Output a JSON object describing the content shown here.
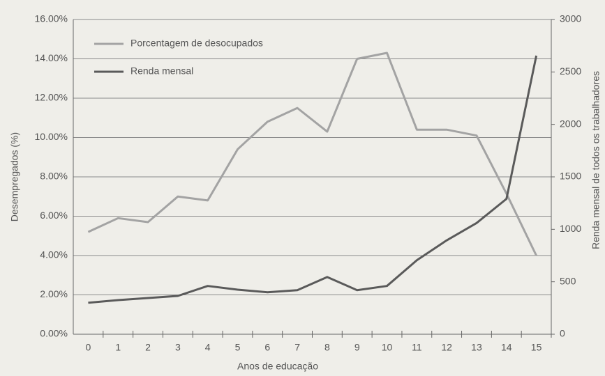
{
  "chart_data": {
    "type": "line",
    "x": [
      0,
      1,
      2,
      3,
      4,
      5,
      6,
      7,
      8,
      9,
      10,
      11,
      12,
      13,
      14,
      15
    ],
    "xlim": [
      -0.5,
      15.5
    ],
    "xticks": [
      0,
      1,
      2,
      3,
      4,
      5,
      6,
      7,
      8,
      9,
      10,
      11,
      12,
      13,
      14,
      15
    ],
    "xlabel": "Anos de educação",
    "ylabel": "Desempregados (%)",
    "y2label": "Renda mensal de todos os trabalhadores",
    "ylim": [
      0,
      16
    ],
    "yticks": [
      {
        "value": 0,
        "label": "0.00%"
      },
      {
        "value": 2,
        "label": "2.00%"
      },
      {
        "value": 4,
        "label": "4.00%"
      },
      {
        "value": 6,
        "label": "6.00%"
      },
      {
        "value": 8,
        "label": "8.00%"
      },
      {
        "value": 10,
        "label": "10.00%"
      },
      {
        "value": 12,
        "label": "12.00%"
      },
      {
        "value": 14,
        "label": "14.00%"
      },
      {
        "value": 16,
        "label": "16.00%"
      }
    ],
    "y2lim": [
      0,
      3000
    ],
    "y2ticks": [
      0,
      500,
      1000,
      1500,
      2000,
      2500,
      3000
    ],
    "grid": true,
    "legend": "upper left",
    "series": [
      {
        "name": "Porcentagem de desocupados",
        "color": "#a3a3a3",
        "values": [
          5.2,
          5.9,
          5.7,
          7.0,
          6.8,
          9.4,
          10.8,
          11.5,
          10.3,
          14.0,
          14.3,
          10.4,
          10.4,
          10.1,
          7.15,
          4.0
        ]
      },
      {
        "name": "Renda mensal",
        "color": "#5a5a5a",
        "axis": "y2",
        "values": [
          300,
          325,
          345,
          365,
          460,
          425,
          400,
          420,
          545,
          420,
          460,
          705,
          895,
          1060,
          1290,
          2655
        ]
      }
    ]
  }
}
